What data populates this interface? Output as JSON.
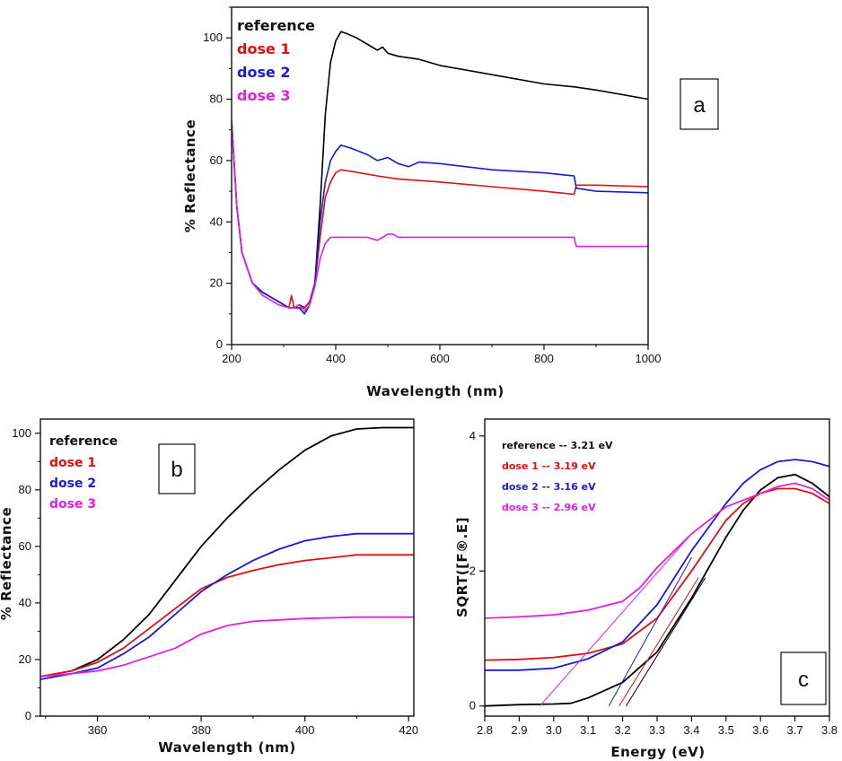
{
  "colors": {
    "reference": "#000000",
    "dose1": "#dd1111",
    "dose2": "#1a1ad0",
    "dose3": "#e020e0"
  },
  "chart_data": [
    {
      "panel": "a",
      "type": "line",
      "xlabel": "Wavelength (nm)",
      "ylabel": "% Reflectance",
      "xlim": [
        200,
        1000
      ],
      "ylim": [
        0,
        110
      ],
      "xticks": [
        200,
        400,
        600,
        800,
        1000
      ],
      "yticks": [
        0,
        20,
        40,
        60,
        80,
        100
      ],
      "legend": [
        "reference",
        "dose 1",
        "dose 2",
        "dose 3"
      ],
      "series": [
        {
          "name": "reference",
          "color": "#000000",
          "points": [
            [
              200,
              73
            ],
            [
              210,
              45
            ],
            [
              220,
              30
            ],
            [
              240,
              20
            ],
            [
              260,
              17
            ],
            [
              290,
              14
            ],
            [
              310,
              12
            ],
            [
              320,
              12
            ],
            [
              330,
              13
            ],
            [
              340,
              12
            ],
            [
              350,
              14
            ],
            [
              360,
              20
            ],
            [
              370,
              45
            ],
            [
              380,
              75
            ],
            [
              390,
              92
            ],
            [
              400,
              99
            ],
            [
              410,
              102
            ],
            [
              420,
              101.5
            ],
            [
              440,
              100
            ],
            [
              460,
              98
            ],
            [
              480,
              96
            ],
            [
              490,
              97
            ],
            [
              500,
              95
            ],
            [
              520,
              94
            ],
            [
              560,
              93
            ],
            [
              600,
              91
            ],
            [
              700,
              88
            ],
            [
              800,
              85
            ],
            [
              860,
              84
            ],
            [
              900,
              83
            ],
            [
              1000,
              80
            ]
          ]
        },
        {
          "name": "dose 1",
          "color": "#dd1111",
          "points": [
            [
              200,
              73
            ],
            [
              210,
              45
            ],
            [
              220,
              30
            ],
            [
              240,
              20
            ],
            [
              260,
              17
            ],
            [
              290,
              14
            ],
            [
              310,
              12
            ],
            [
              315,
              16
            ],
            [
              320,
              12
            ],
            [
              330,
              12
            ],
            [
              340,
              12
            ],
            [
              350,
              14
            ],
            [
              360,
              20
            ],
            [
              370,
              35
            ],
            [
              380,
              48
            ],
            [
              390,
              53
            ],
            [
              400,
              56
            ],
            [
              410,
              57
            ],
            [
              430,
              56.5
            ],
            [
              480,
              55
            ],
            [
              520,
              54
            ],
            [
              600,
              53
            ],
            [
              700,
              51.5
            ],
            [
              800,
              50
            ],
            [
              858,
              49
            ],
            [
              862,
              52
            ],
            [
              900,
              52
            ],
            [
              1000,
              51.5
            ]
          ]
        },
        {
          "name": "dose 2",
          "color": "#1a1ad0",
          "points": [
            [
              200,
              73
            ],
            [
              210,
              45
            ],
            [
              220,
              30
            ],
            [
              240,
              20
            ],
            [
              260,
              17
            ],
            [
              290,
              14
            ],
            [
              310,
              12
            ],
            [
              330,
              12
            ],
            [
              340,
              10
            ],
            [
              350,
              13
            ],
            [
              360,
              20
            ],
            [
              370,
              40
            ],
            [
              380,
              53
            ],
            [
              390,
              60
            ],
            [
              400,
              63
            ],
            [
              410,
              65
            ],
            [
              430,
              64
            ],
            [
              460,
              62
            ],
            [
              480,
              60
            ],
            [
              500,
              61
            ],
            [
              520,
              59
            ],
            [
              540,
              58
            ],
            [
              560,
              59.5
            ],
            [
              600,
              59
            ],
            [
              700,
              57
            ],
            [
              800,
              56
            ],
            [
              858,
              55
            ],
            [
              862,
              51
            ],
            [
              900,
              50
            ],
            [
              1000,
              49.5
            ]
          ]
        },
        {
          "name": "dose 3",
          "color": "#e020e0",
          "points": [
            [
              200,
              73
            ],
            [
              210,
              45
            ],
            [
              220,
              30
            ],
            [
              240,
              20
            ],
            [
              260,
              16
            ],
            [
              290,
              13
            ],
            [
              310,
              12
            ],
            [
              320,
              12
            ],
            [
              330,
              13
            ],
            [
              340,
              11
            ],
            [
              350,
              13
            ],
            [
              360,
              19
            ],
            [
              370,
              28
            ],
            [
              380,
              33
            ],
            [
              390,
              35
            ],
            [
              400,
              35
            ],
            [
              420,
              35
            ],
            [
              460,
              35
            ],
            [
              480,
              34
            ],
            [
              490,
              35
            ],
            [
              500,
              36
            ],
            [
              510,
              36
            ],
            [
              520,
              35
            ],
            [
              560,
              35
            ],
            [
              600,
              35
            ],
            [
              700,
              35
            ],
            [
              800,
              35
            ],
            [
              858,
              35
            ],
            [
              862,
              32
            ],
            [
              900,
              32
            ],
            [
              1000,
              32
            ]
          ]
        }
      ]
    },
    {
      "panel": "b",
      "type": "line",
      "xlabel": "Wavelength (nm)",
      "ylabel": "% Reflectance",
      "xlim": [
        349,
        421
      ],
      "ylim": [
        0,
        105
      ],
      "xticks": [
        360,
        380,
        400,
        420
      ],
      "yticks": [
        0,
        20,
        40,
        60,
        80,
        100
      ],
      "legend": [
        "reference",
        "dose 1",
        "dose 2",
        "dose 3"
      ],
      "series": [
        {
          "name": "reference",
          "color": "#000000",
          "points": [
            [
              349,
              14
            ],
            [
              355,
              16
            ],
            [
              360,
              20
            ],
            [
              365,
              27
            ],
            [
              370,
              36
            ],
            [
              375,
              48
            ],
            [
              380,
              60
            ],
            [
              385,
              70
            ],
            [
              390,
              79
            ],
            [
              395,
              87
            ],
            [
              400,
              94
            ],
            [
              405,
              99
            ],
            [
              410,
              101.5
            ],
            [
              415,
              102
            ],
            [
              421,
              102
            ]
          ]
        },
        {
          "name": "dose 1",
          "color": "#dd1111",
          "points": [
            [
              349,
              14
            ],
            [
              355,
              16
            ],
            [
              360,
              19
            ],
            [
              365,
              24
            ],
            [
              370,
              31
            ],
            [
              375,
              38
            ],
            [
              380,
              45
            ],
            [
              385,
              49
            ],
            [
              390,
              51.5
            ],
            [
              395,
              53.5
            ],
            [
              400,
              55
            ],
            [
              405,
              56
            ],
            [
              410,
              57
            ],
            [
              415,
              57
            ],
            [
              421,
              57
            ]
          ]
        },
        {
          "name": "dose 2",
          "color": "#1a1ad0",
          "points": [
            [
              349,
              13
            ],
            [
              355,
              15
            ],
            [
              360,
              17
            ],
            [
              365,
              22
            ],
            [
              370,
              28
            ],
            [
              375,
              36
            ],
            [
              380,
              44
            ],
            [
              385,
              50
            ],
            [
              390,
              55
            ],
            [
              395,
              59
            ],
            [
              400,
              62
            ],
            [
              405,
              63.5
            ],
            [
              410,
              64.5
            ],
            [
              415,
              64.5
            ],
            [
              421,
              64.5
            ]
          ]
        },
        {
          "name": "dose 3",
          "color": "#e020e0",
          "points": [
            [
              349,
              14
            ],
            [
              355,
              15
            ],
            [
              360,
              16
            ],
            [
              365,
              18
            ],
            [
              370,
              21
            ],
            [
              375,
              24
            ],
            [
              378,
              27
            ],
            [
              380,
              29
            ],
            [
              385,
              32
            ],
            [
              390,
              33.5
            ],
            [
              395,
              34
            ],
            [
              400,
              34.5
            ],
            [
              410,
              35
            ],
            [
              421,
              35
            ]
          ]
        }
      ]
    },
    {
      "panel": "c",
      "type": "line",
      "xlabel": "Energy (eV)",
      "ylabel": "SQRT([F®.E]",
      "xlim": [
        2.8,
        3.8
      ],
      "ylim": [
        -0.15,
        4.25
      ],
      "xticks": [
        2.8,
        2.9,
        3.0,
        3.1,
        3.2,
        3.3,
        3.4,
        3.5,
        3.6,
        3.7,
        3.8
      ],
      "yticks": [
        0,
        2,
        4
      ],
      "legend": [
        "reference -- 3.21 eV",
        "dose 1 -- 3.19 eV",
        "dose 2 -- 3.16 eV",
        "dose 3 -- 2.96 eV"
      ],
      "series": [
        {
          "name": "reference",
          "color": "#000000",
          "points": [
            [
              2.8,
              0.0
            ],
            [
              2.9,
              0.02
            ],
            [
              3.0,
              0.03
            ],
            [
              3.05,
              0.04
            ],
            [
              3.1,
              0.12
            ],
            [
              3.2,
              0.35
            ],
            [
              3.3,
              0.8
            ],
            [
              3.4,
              1.6
            ],
            [
              3.5,
              2.5
            ],
            [
              3.55,
              2.9
            ],
            [
              3.6,
              3.2
            ],
            [
              3.65,
              3.38
            ],
            [
              3.7,
              3.43
            ],
            [
              3.75,
              3.3
            ],
            [
              3.8,
              3.1
            ]
          ]
        },
        {
          "name": "dose 1",
          "color": "#dd1111",
          "points": [
            [
              2.8,
              0.68
            ],
            [
              2.9,
              0.69
            ],
            [
              3.0,
              0.72
            ],
            [
              3.1,
              0.78
            ],
            [
              3.2,
              0.92
            ],
            [
              3.3,
              1.3
            ],
            [
              3.4,
              2.0
            ],
            [
              3.5,
              2.75
            ],
            [
              3.55,
              3.0
            ],
            [
              3.6,
              3.15
            ],
            [
              3.65,
              3.22
            ],
            [
              3.7,
              3.22
            ],
            [
              3.75,
              3.15
            ],
            [
              3.8,
              3.0
            ]
          ]
        },
        {
          "name": "dose 2",
          "color": "#1a1ad0",
          "points": [
            [
              2.8,
              0.53
            ],
            [
              2.9,
              0.53
            ],
            [
              3.0,
              0.56
            ],
            [
              3.1,
              0.7
            ],
            [
              3.2,
              0.95
            ],
            [
              3.3,
              1.5
            ],
            [
              3.4,
              2.3
            ],
            [
              3.5,
              3.0
            ],
            [
              3.55,
              3.3
            ],
            [
              3.6,
              3.5
            ],
            [
              3.65,
              3.62
            ],
            [
              3.7,
              3.65
            ],
            [
              3.75,
              3.62
            ],
            [
              3.8,
              3.55
            ]
          ]
        },
        {
          "name": "dose 3",
          "color": "#e020e0",
          "points": [
            [
              2.8,
              1.3
            ],
            [
              2.9,
              1.32
            ],
            [
              3.0,
              1.35
            ],
            [
              3.1,
              1.42
            ],
            [
              3.2,
              1.55
            ],
            [
              3.25,
              1.75
            ],
            [
              3.3,
              2.05
            ],
            [
              3.35,
              2.3
            ],
            [
              3.4,
              2.55
            ],
            [
              3.5,
              2.95
            ],
            [
              3.6,
              3.15
            ],
            [
              3.65,
              3.25
            ],
            [
              3.7,
              3.3
            ],
            [
              3.75,
              3.22
            ],
            [
              3.8,
              3.05
            ]
          ]
        }
      ],
      "tangents": [
        {
          "name": "reference",
          "color": "#000000",
          "x0": 3.21,
          "x1": 3.44,
          "y1": 1.9
        },
        {
          "name": "dose 1",
          "color": "#dd1111",
          "x0": 3.19,
          "x1": 3.42,
          "y1": 1.9
        },
        {
          "name": "dose 2",
          "color": "#1a1ad0",
          "x0": 3.16,
          "x1": 3.4,
          "y1": 2.2
        },
        {
          "name": "dose 3",
          "color": "#e020e0",
          "x0": 2.96,
          "x1": 3.4,
          "y1": 2.55
        }
      ]
    }
  ],
  "panel_labels": {
    "a": "a",
    "b": "b",
    "c": "c"
  }
}
